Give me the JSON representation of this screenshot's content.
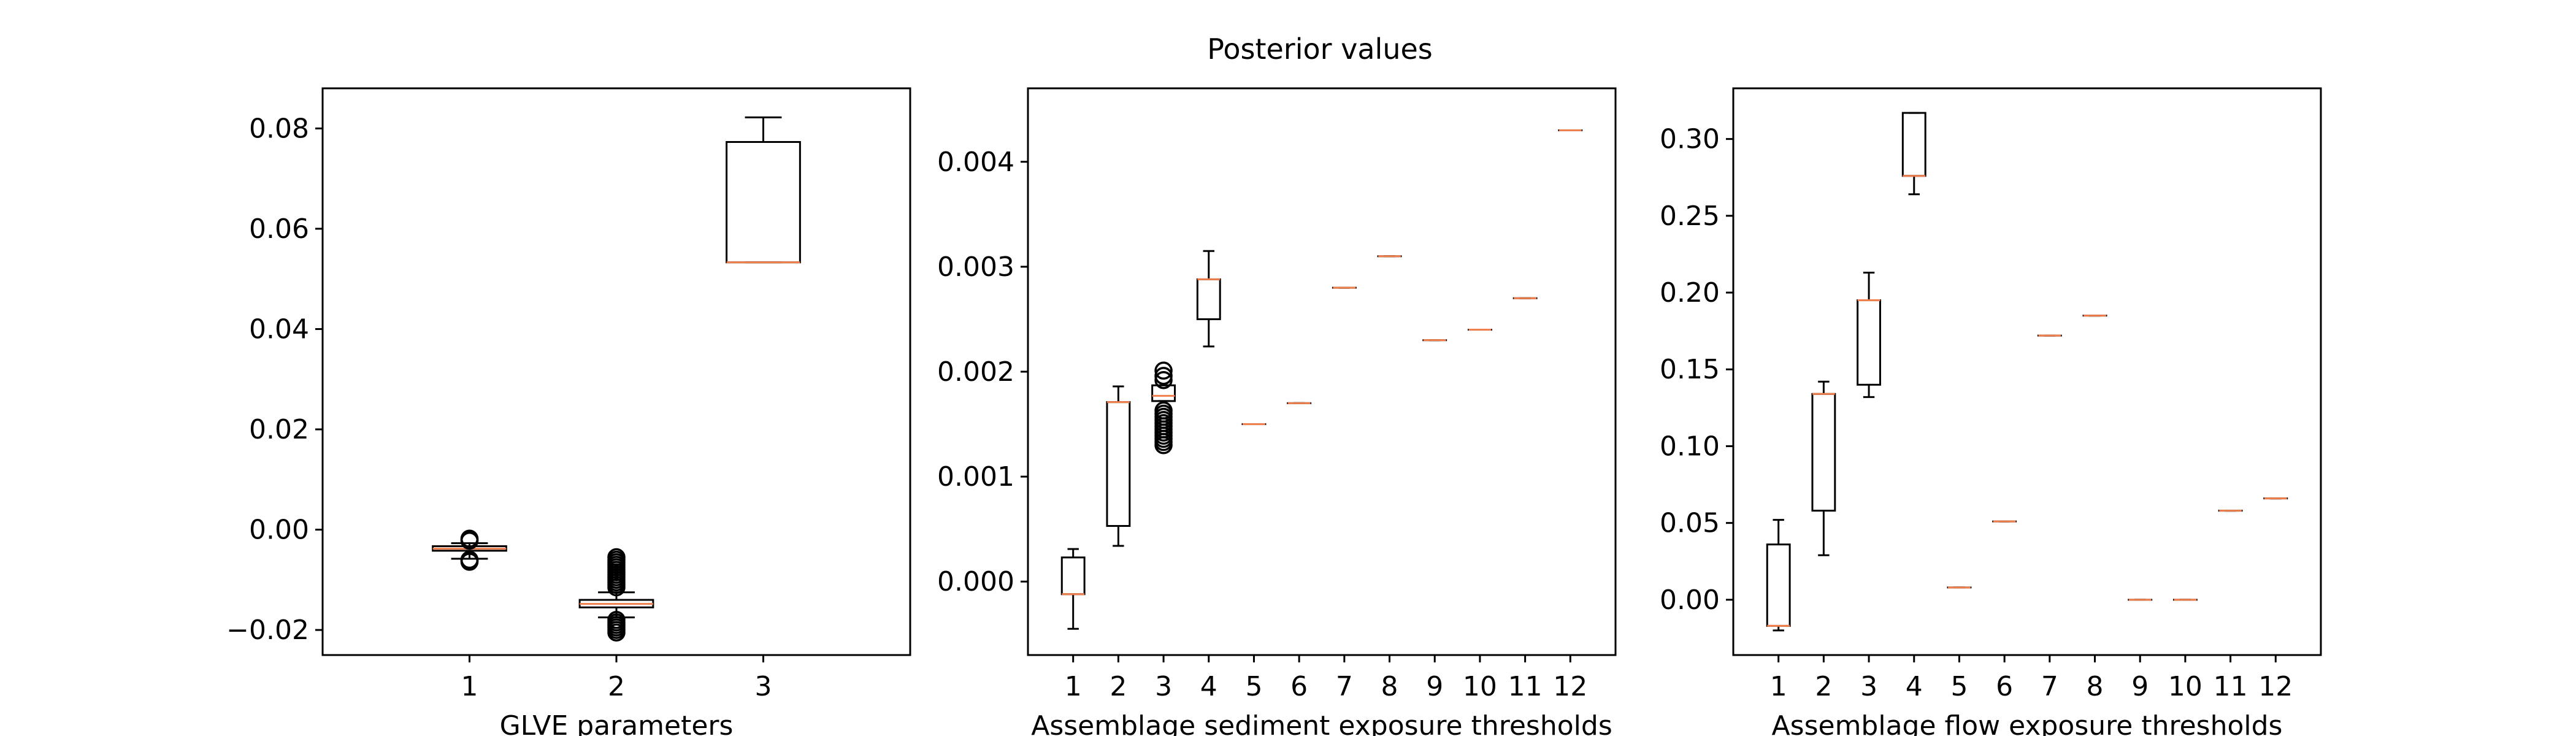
{
  "figure": {
    "title": "Posterior values"
  },
  "chart_data": [
    {
      "type": "box",
      "xlabel": "GLVE parameters",
      "ylabel": "",
      "categories": [
        "1",
        "2",
        "3"
      ],
      "ylim": [
        -0.025,
        0.088
      ],
      "yticks": [
        -0.02,
        0.0,
        0.02,
        0.04,
        0.06,
        0.08
      ],
      "ytick_labels": [
        "−0.02",
        "0.00",
        "0.02",
        "0.04",
        "0.06",
        "0.08"
      ],
      "boxes": [
        {
          "label": "1",
          "whislo": -0.0058,
          "q1": -0.0042,
          "med": -0.0038,
          "q3": -0.0033,
          "whishi": -0.0027,
          "fliers": [
            -0.0064,
            -0.0062,
            -0.006,
            -0.0022,
            -0.002,
            -0.0018
          ]
        },
        {
          "label": "2",
          "whislo": -0.0175,
          "q1": -0.0155,
          "med": -0.0148,
          "q3": -0.014,
          "whishi": -0.0125,
          "fliers": [
            -0.0205,
            -0.02,
            -0.0195,
            -0.019,
            -0.0185,
            -0.018,
            -0.0115,
            -0.011,
            -0.0105,
            -0.01,
            -0.0095,
            -0.009,
            -0.0085,
            -0.008,
            -0.0075,
            -0.007,
            -0.0065,
            -0.006,
            -0.0055
          ]
        },
        {
          "label": "3",
          "whislo": 0.0533,
          "q1": 0.0533,
          "med": 0.0533,
          "q3": 0.0773,
          "whishi": 0.0822,
          "fliers": []
        }
      ]
    },
    {
      "type": "box",
      "xlabel": "Assemblage sediment exposure thresholds",
      "ylabel": "",
      "categories": [
        "1",
        "2",
        "3",
        "4",
        "5",
        "6",
        "7",
        "8",
        "9",
        "10",
        "11",
        "12"
      ],
      "ylim": [
        -0.0007,
        0.0047
      ],
      "yticks": [
        0.0,
        0.001,
        0.002,
        0.003,
        0.004
      ],
      "ytick_labels": [
        "0.000",
        "0.001",
        "0.002",
        "0.003",
        "0.004"
      ],
      "boxes": [
        {
          "label": "1",
          "whislo": -0.00045,
          "q1": -0.00012,
          "med": -0.00012,
          "q3": 0.00023,
          "whishi": 0.00031,
          "fliers": []
        },
        {
          "label": "2",
          "whislo": 0.00034,
          "q1": 0.00053,
          "med": 0.00171,
          "q3": 0.00171,
          "whishi": 0.00186,
          "fliers": []
        },
        {
          "label": "3",
          "whislo": 0.00172,
          "q1": 0.00172,
          "med": 0.00177,
          "q3": 0.00187,
          "whishi": 0.00187,
          "fliers": [
            0.0013,
            0.00133,
            0.00136,
            0.00139,
            0.00142,
            0.00145,
            0.00148,
            0.00151,
            0.00154,
            0.00157,
            0.0016,
            0.00163,
            0.00192,
            0.00196,
            0.00201
          ]
        },
        {
          "label": "4",
          "whislo": 0.00224,
          "q1": 0.0025,
          "med": 0.00288,
          "q3": 0.00288,
          "whishi": 0.00315,
          "fliers": []
        },
        {
          "label": "5",
          "whislo": 0.0015,
          "q1": 0.0015,
          "med": 0.0015,
          "q3": 0.0015,
          "whishi": 0.0015,
          "fliers": []
        },
        {
          "label": "6",
          "whislo": 0.0017,
          "q1": 0.0017,
          "med": 0.0017,
          "q3": 0.0017,
          "whishi": 0.0017,
          "fliers": []
        },
        {
          "label": "7",
          "whislo": 0.0028,
          "q1": 0.0028,
          "med": 0.0028,
          "q3": 0.0028,
          "whishi": 0.0028,
          "fliers": []
        },
        {
          "label": "8",
          "whislo": 0.0031,
          "q1": 0.0031,
          "med": 0.0031,
          "q3": 0.0031,
          "whishi": 0.0031,
          "fliers": []
        },
        {
          "label": "9",
          "whislo": 0.0023,
          "q1": 0.0023,
          "med": 0.0023,
          "q3": 0.0023,
          "whishi": 0.0023,
          "fliers": []
        },
        {
          "label": "10",
          "whislo": 0.0024,
          "q1": 0.0024,
          "med": 0.0024,
          "q3": 0.0024,
          "whishi": 0.0024,
          "fliers": []
        },
        {
          "label": "11",
          "whislo": 0.0027,
          "q1": 0.0027,
          "med": 0.0027,
          "q3": 0.0027,
          "whishi": 0.0027,
          "fliers": []
        },
        {
          "label": "12",
          "whislo": 0.0043,
          "q1": 0.0043,
          "med": 0.0043,
          "q3": 0.0043,
          "whishi": 0.0043,
          "fliers": []
        }
      ]
    },
    {
      "type": "box",
      "xlabel": "Assemblage flow exposure thresholds",
      "ylabel": "",
      "categories": [
        "1",
        "2",
        "3",
        "4",
        "5",
        "6",
        "7",
        "8",
        "9",
        "10",
        "11",
        "12"
      ],
      "ylim": [
        -0.036,
        0.333
      ],
      "yticks": [
        0.0,
        0.05,
        0.1,
        0.15,
        0.2,
        0.25,
        0.3
      ],
      "ytick_labels": [
        "0.00",
        "0.05",
        "0.10",
        "0.15",
        "0.20",
        "0.25",
        "0.30"
      ],
      "boxes": [
        {
          "label": "1",
          "whislo": -0.02,
          "q1": -0.017,
          "med": -0.017,
          "q3": 0.036,
          "whishi": 0.052,
          "fliers": []
        },
        {
          "label": "2",
          "whislo": 0.029,
          "q1": 0.058,
          "med": 0.134,
          "q3": 0.134,
          "whishi": 0.142,
          "fliers": []
        },
        {
          "label": "3",
          "whislo": 0.132,
          "q1": 0.14,
          "med": 0.195,
          "q3": 0.195,
          "whishi": 0.213,
          "fliers": []
        },
        {
          "label": "4",
          "whislo": 0.264,
          "q1": 0.276,
          "med": 0.276,
          "q3": 0.317,
          "whishi": 0.317,
          "fliers": []
        },
        {
          "label": "5",
          "whislo": 0.008,
          "q1": 0.008,
          "med": 0.008,
          "q3": 0.008,
          "whishi": 0.008,
          "fliers": []
        },
        {
          "label": "6",
          "whislo": 0.051,
          "q1": 0.051,
          "med": 0.051,
          "q3": 0.051,
          "whishi": 0.051,
          "fliers": []
        },
        {
          "label": "7",
          "whislo": 0.172,
          "q1": 0.172,
          "med": 0.172,
          "q3": 0.172,
          "whishi": 0.172,
          "fliers": []
        },
        {
          "label": "8",
          "whislo": 0.185,
          "q1": 0.185,
          "med": 0.185,
          "q3": 0.185,
          "whishi": 0.185,
          "fliers": []
        },
        {
          "label": "9",
          "whislo": 0.0,
          "q1": 0.0,
          "med": 0.0,
          "q3": 0.0,
          "whishi": 0.0,
          "fliers": []
        },
        {
          "label": "10",
          "whislo": 0.0,
          "q1": 0.0,
          "med": 0.0,
          "q3": 0.0,
          "whishi": 0.0,
          "fliers": []
        },
        {
          "label": "11",
          "whislo": 0.058,
          "q1": 0.058,
          "med": 0.058,
          "q3": 0.058,
          "whishi": 0.058,
          "fliers": []
        },
        {
          "label": "12",
          "whislo": 0.066,
          "q1": 0.066,
          "med": 0.066,
          "q3": 0.066,
          "whishi": 0.066,
          "fliers": []
        }
      ]
    }
  ],
  "style": {
    "box_color": "#000000",
    "median_color": "#f07f4d",
    "background": "#ffffff"
  }
}
